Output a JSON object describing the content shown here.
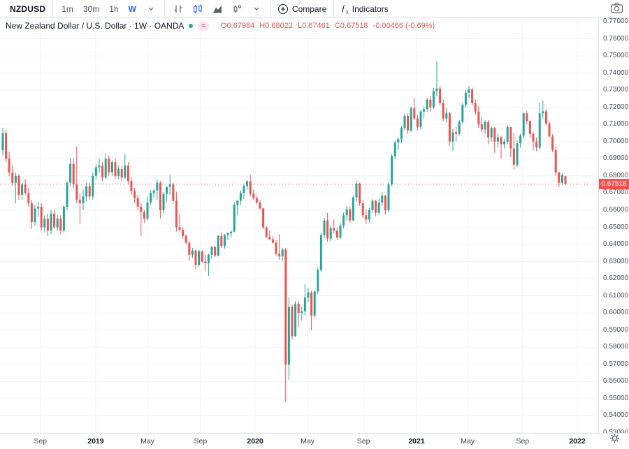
{
  "toolbar": {
    "symbol": "NZDUSD",
    "intervals": [
      "1m",
      "30m",
      "1h"
    ],
    "active_interval": "W",
    "compare_label": "Compare",
    "indicators_label": "Indicators"
  },
  "legend": {
    "title": "New Zealand Dollar / U.S. Dollar · 1W · OANDA",
    "delay_badge": "≈",
    "ohlc": {
      "open": "O0.67984",
      "high": "H0.68022",
      "low": "L0.67461",
      "close": "C0.67518",
      "change": "-0.00466 (-0.69%)"
    }
  },
  "price_scale": {
    "labels": [
      "0.77000",
      "0.76000",
      "0.75000",
      "0.74000",
      "0.73000",
      "0.72000",
      "0.71000",
      "0.70000",
      "0.69000",
      "0.68000",
      "0.67000",
      "0.66000",
      "0.65000",
      "0.64000",
      "0.63000",
      "0.62000",
      "0.61000",
      "0.60000",
      "0.59000",
      "0.58000",
      "0.57000",
      "0.56000",
      "0.55000",
      "0.54000",
      "0.53000"
    ],
    "last_price_label": "0.67518"
  },
  "time_scale": {
    "ticks": [
      {
        "label": "Sep",
        "i": 11.7,
        "bold": false
      },
      {
        "label": "2019",
        "i": 28.9,
        "bold": true
      },
      {
        "label": "May",
        "i": 45.0,
        "bold": false
      },
      {
        "label": "Sep",
        "i": 61.5,
        "bold": false
      },
      {
        "label": "2020",
        "i": 78.5,
        "bold": true
      },
      {
        "label": "May",
        "i": 94.8,
        "bold": false
      },
      {
        "label": "Sep",
        "i": 112.2,
        "bold": false
      },
      {
        "label": "2021",
        "i": 128.7,
        "bold": true
      },
      {
        "label": "May",
        "i": 144.6,
        "bold": false
      },
      {
        "label": "Sep",
        "i": 161.7,
        "bold": false
      },
      {
        "label": "2022",
        "i": 178.7,
        "bold": true
      }
    ]
  },
  "colors": {
    "up": "#26a69a",
    "down": "#ef5350",
    "accent": "#2962ff",
    "grid": "#f0f3fa",
    "border": "#e0e3eb",
    "icon": "#5d606b",
    "last_price_bg": "#ef5350"
  },
  "chart_data": {
    "type": "candlestick",
    "title": "New Zealand Dollar / U.S. Dollar",
    "symbol": "NZDUSD",
    "interval": "1W",
    "exchange": "OANDA",
    "ylim": [
      0.53,
      0.77
    ],
    "last_price": 0.67518,
    "ohlc_current": {
      "open": 0.67984,
      "high": 0.68022,
      "low": 0.67461,
      "close": 0.67518,
      "change": -0.00466,
      "change_pct": -0.69
    },
    "candles": [
      [
        0.695,
        0.708,
        0.692,
        0.705
      ],
      [
        0.705,
        0.707,
        0.688,
        0.69
      ],
      [
        0.69,
        0.694,
        0.68,
        0.682
      ],
      [
        0.682,
        0.686,
        0.674,
        0.676
      ],
      [
        0.676,
        0.682,
        0.664,
        0.68
      ],
      [
        0.68,
        0.681,
        0.666,
        0.669
      ],
      [
        0.669,
        0.676,
        0.666,
        0.675
      ],
      [
        0.675,
        0.678,
        0.669,
        0.67
      ],
      [
        0.67,
        0.673,
        0.662,
        0.664
      ],
      [
        0.664,
        0.666,
        0.649,
        0.653
      ],
      [
        0.653,
        0.663,
        0.651,
        0.661
      ],
      [
        0.661,
        0.665,
        0.656,
        0.662
      ],
      [
        0.662,
        0.664,
        0.648,
        0.65
      ],
      [
        0.65,
        0.657,
        0.647,
        0.655
      ],
      [
        0.655,
        0.658,
        0.645,
        0.648
      ],
      [
        0.648,
        0.66,
        0.646,
        0.658
      ],
      [
        0.658,
        0.66,
        0.649,
        0.65
      ],
      [
        0.65,
        0.657,
        0.648,
        0.655
      ],
      [
        0.655,
        0.657,
        0.646,
        0.648
      ],
      [
        0.648,
        0.663,
        0.647,
        0.662
      ],
      [
        0.662,
        0.677,
        0.66,
        0.676
      ],
      [
        0.676,
        0.69,
        0.674,
        0.687
      ],
      [
        0.687,
        0.69,
        0.673,
        0.675
      ],
      [
        0.675,
        0.697,
        0.664,
        0.666
      ],
      [
        0.666,
        0.67,
        0.652,
        0.664
      ],
      [
        0.664,
        0.672,
        0.66,
        0.668
      ],
      [
        0.668,
        0.676,
        0.665,
        0.674
      ],
      [
        0.674,
        0.676,
        0.666,
        0.668
      ],
      [
        0.668,
        0.682,
        0.666,
        0.68
      ],
      [
        0.68,
        0.687,
        0.678,
        0.685
      ],
      [
        0.685,
        0.69,
        0.682,
        0.686
      ],
      [
        0.686,
        0.688,
        0.677,
        0.679
      ],
      [
        0.679,
        0.693,
        0.678,
        0.69
      ],
      [
        0.69,
        0.692,
        0.68,
        0.682
      ],
      [
        0.682,
        0.689,
        0.68,
        0.688
      ],
      [
        0.688,
        0.69,
        0.678,
        0.68
      ],
      [
        0.68,
        0.686,
        0.678,
        0.684
      ],
      [
        0.684,
        0.686,
        0.677,
        0.679
      ],
      [
        0.679,
        0.693,
        0.678,
        0.686
      ],
      [
        0.686,
        0.688,
        0.675,
        0.677
      ],
      [
        0.677,
        0.679,
        0.669,
        0.671
      ],
      [
        0.671,
        0.673,
        0.664,
        0.667
      ],
      [
        0.667,
        0.669,
        0.66,
        0.662
      ],
      [
        0.662,
        0.664,
        0.645,
        0.659
      ],
      [
        0.659,
        0.66,
        0.6525,
        0.655
      ],
      [
        0.655,
        0.668,
        0.654,
        0.6645
      ],
      [
        0.6645,
        0.6715,
        0.663,
        0.67
      ],
      [
        0.67,
        0.6725,
        0.667,
        0.6715
      ],
      [
        0.6715,
        0.678,
        0.666,
        0.676
      ],
      [
        0.676,
        0.677,
        0.655,
        0.66
      ],
      [
        0.66,
        0.6705,
        0.658,
        0.6695
      ],
      [
        0.6695,
        0.674,
        0.665,
        0.6735
      ],
      [
        0.6735,
        0.6805,
        0.669,
        0.675
      ],
      [
        0.675,
        0.676,
        0.664,
        0.6655
      ],
      [
        0.6655,
        0.6705,
        0.6475,
        0.65
      ],
      [
        0.65,
        0.658,
        0.6475,
        0.6485
      ],
      [
        0.6485,
        0.65,
        0.6434,
        0.645
      ],
      [
        0.645,
        0.646,
        0.64,
        0.641
      ],
      [
        0.641,
        0.642,
        0.6305,
        0.634
      ],
      [
        0.634,
        0.638,
        0.632,
        0.6365
      ],
      [
        0.6365,
        0.637,
        0.6257,
        0.628
      ],
      [
        0.628,
        0.637,
        0.627,
        0.636
      ],
      [
        0.636,
        0.6365,
        0.629,
        0.63
      ],
      [
        0.63,
        0.634,
        0.6245,
        0.629
      ],
      [
        0.629,
        0.6345,
        0.6217,
        0.634
      ],
      [
        0.634,
        0.639,
        0.6315,
        0.6385
      ],
      [
        0.6385,
        0.639,
        0.6325,
        0.6335
      ],
      [
        0.6335,
        0.6455,
        0.633,
        0.645
      ],
      [
        0.645,
        0.647,
        0.638,
        0.639
      ],
      [
        0.639,
        0.646,
        0.6375,
        0.6455
      ],
      [
        0.6455,
        0.647,
        0.6425,
        0.6465
      ],
      [
        0.6465,
        0.648,
        0.644,
        0.6475
      ],
      [
        0.6475,
        0.6645,
        0.647,
        0.663
      ],
      [
        0.663,
        0.666,
        0.657,
        0.6655
      ],
      [
        0.6655,
        0.6715,
        0.663,
        0.67
      ],
      [
        0.67,
        0.675,
        0.6665,
        0.674
      ],
      [
        0.674,
        0.6775,
        0.672,
        0.6768
      ],
      [
        0.6768,
        0.6805,
        0.668,
        0.6695
      ],
      [
        0.6695,
        0.672,
        0.666,
        0.667
      ],
      [
        0.667,
        0.6685,
        0.6635,
        0.6645
      ],
      [
        0.6645,
        0.666,
        0.66,
        0.661
      ],
      [
        0.661,
        0.6615,
        0.6489,
        0.65
      ],
      [
        0.65,
        0.6505,
        0.6435,
        0.6445
      ],
      [
        0.6445,
        0.648,
        0.6425,
        0.643
      ],
      [
        0.643,
        0.6448,
        0.6405,
        0.641
      ],
      [
        0.641,
        0.6425,
        0.6335,
        0.6345
      ],
      [
        0.6345,
        0.646,
        0.631,
        0.633
      ],
      [
        0.633,
        0.638,
        0.6305,
        0.637
      ],
      [
        0.637,
        0.638,
        0.548,
        0.57
      ],
      [
        0.57,
        0.609,
        0.561,
        0.6035
      ],
      [
        0.6035,
        0.605,
        0.5845,
        0.5865
      ],
      [
        0.5865,
        0.607,
        0.586,
        0.6055
      ],
      [
        0.6055,
        0.607,
        0.592,
        0.6
      ],
      [
        0.6,
        0.6035,
        0.5955,
        0.601
      ],
      [
        0.601,
        0.617,
        0.5985,
        0.609
      ],
      [
        0.609,
        0.6145,
        0.6065,
        0.612
      ],
      [
        0.612,
        0.613,
        0.59,
        0.5985
      ],
      [
        0.5985,
        0.6135,
        0.597,
        0.6125
      ],
      [
        0.6125,
        0.6265,
        0.611,
        0.625
      ],
      [
        0.625,
        0.647,
        0.624,
        0.6455
      ],
      [
        0.6455,
        0.6555,
        0.644,
        0.654
      ],
      [
        0.654,
        0.6585,
        0.6415,
        0.6435
      ],
      [
        0.6435,
        0.651,
        0.642,
        0.6495
      ],
      [
        0.6495,
        0.6545,
        0.6465,
        0.648
      ],
      [
        0.648,
        0.65,
        0.6425,
        0.644
      ],
      [
        0.644,
        0.6525,
        0.643,
        0.651
      ],
      [
        0.651,
        0.6585,
        0.6495,
        0.657
      ],
      [
        0.657,
        0.6625,
        0.654,
        0.6605
      ],
      [
        0.6605,
        0.662,
        0.6525,
        0.654
      ],
      [
        0.654,
        0.6685,
        0.6535,
        0.6675
      ],
      [
        0.6675,
        0.677,
        0.665,
        0.6755
      ],
      [
        0.6755,
        0.676,
        0.6625,
        0.664
      ],
      [
        0.664,
        0.6655,
        0.6555,
        0.657
      ],
      [
        0.657,
        0.6605,
        0.652,
        0.6545
      ],
      [
        0.6545,
        0.6615,
        0.6525,
        0.66
      ],
      [
        0.66,
        0.6665,
        0.6585,
        0.6655
      ],
      [
        0.6655,
        0.666,
        0.6565,
        0.6585
      ],
      [
        0.6585,
        0.6665,
        0.657,
        0.6645
      ],
      [
        0.6645,
        0.6705,
        0.6625,
        0.6685
      ],
      [
        0.6685,
        0.669,
        0.6575,
        0.66
      ],
      [
        0.66,
        0.6765,
        0.6585,
        0.675
      ],
      [
        0.675,
        0.693,
        0.674,
        0.6915
      ],
      [
        0.6915,
        0.7005,
        0.69,
        0.6995
      ],
      [
        0.6995,
        0.7025,
        0.695,
        0.7015
      ],
      [
        0.7015,
        0.709,
        0.699,
        0.708
      ],
      [
        0.708,
        0.7165,
        0.7065,
        0.715
      ],
      [
        0.715,
        0.7165,
        0.7045,
        0.7065
      ],
      [
        0.7065,
        0.7205,
        0.7055,
        0.7195
      ],
      [
        0.7195,
        0.7255,
        0.7125,
        0.7135
      ],
      [
        0.7135,
        0.7155,
        0.7065,
        0.7085
      ],
      [
        0.7085,
        0.7185,
        0.707,
        0.7175
      ],
      [
        0.7175,
        0.7205,
        0.7135,
        0.719
      ],
      [
        0.719,
        0.7255,
        0.7175,
        0.7245
      ],
      [
        0.7245,
        0.7265,
        0.7175,
        0.72
      ],
      [
        0.72,
        0.7315,
        0.719,
        0.7295
      ],
      [
        0.7295,
        0.747,
        0.7265,
        0.731
      ],
      [
        0.731,
        0.7325,
        0.721,
        0.7225
      ],
      [
        0.7225,
        0.7245,
        0.712,
        0.7135
      ],
      [
        0.7135,
        0.7195,
        0.711,
        0.7165
      ],
      [
        0.7165,
        0.7175,
        0.6975,
        0.7
      ],
      [
        0.7,
        0.7075,
        0.6945,
        0.7055
      ],
      [
        0.7055,
        0.7085,
        0.7,
        0.7045
      ],
      [
        0.7045,
        0.7125,
        0.7035,
        0.7115
      ],
      [
        0.7115,
        0.7225,
        0.7105,
        0.7215
      ],
      [
        0.7215,
        0.73,
        0.72,
        0.7285
      ],
      [
        0.7285,
        0.7325,
        0.7255,
        0.7305
      ],
      [
        0.7305,
        0.7315,
        0.721,
        0.7225
      ],
      [
        0.7225,
        0.7245,
        0.7155,
        0.7175
      ],
      [
        0.7175,
        0.721,
        0.708,
        0.71
      ],
      [
        0.71,
        0.7145,
        0.7055,
        0.707
      ],
      [
        0.707,
        0.7125,
        0.7045,
        0.7115
      ],
      [
        0.7115,
        0.7125,
        0.6985,
        0.7025
      ],
      [
        0.7025,
        0.709,
        0.7,
        0.708
      ],
      [
        0.708,
        0.7085,
        0.6935,
        0.7
      ],
      [
        0.7,
        0.7045,
        0.6965,
        0.7025
      ],
      [
        0.7025,
        0.7035,
        0.69,
        0.6985
      ],
      [
        0.6985,
        0.7015,
        0.696,
        0.7
      ],
      [
        0.7,
        0.7095,
        0.6985,
        0.7085
      ],
      [
        0.7085,
        0.7085,
        0.691,
        0.696
      ],
      [
        0.696,
        0.705,
        0.6838,
        0.6865
      ],
      [
        0.6865,
        0.7005,
        0.685,
        0.699
      ],
      [
        0.699,
        0.7045,
        0.6965,
        0.7035
      ],
      [
        0.7035,
        0.717,
        0.702,
        0.7165
      ],
      [
        0.7165,
        0.718,
        0.71,
        0.712
      ],
      [
        0.712,
        0.7125,
        0.7025,
        0.7045
      ],
      [
        0.7045,
        0.7055,
        0.695,
        0.7
      ],
      [
        0.7,
        0.7025,
        0.6945,
        0.6965
      ],
      [
        0.6965,
        0.7227,
        0.6955,
        0.7165
      ],
      [
        0.7165,
        0.724,
        0.7135,
        0.7177
      ],
      [
        0.7177,
        0.719,
        0.7095,
        0.7105
      ],
      [
        0.7105,
        0.7118,
        0.7025,
        0.703
      ],
      [
        0.703,
        0.7043,
        0.694,
        0.695
      ],
      [
        0.695,
        0.697,
        0.68,
        0.682
      ],
      [
        0.682,
        0.6825,
        0.6735,
        0.676
      ],
      [
        0.676,
        0.6815,
        0.6745,
        0.6805
      ],
      [
        0.67984,
        0.68022,
        0.67461,
        0.67518
      ]
    ]
  }
}
